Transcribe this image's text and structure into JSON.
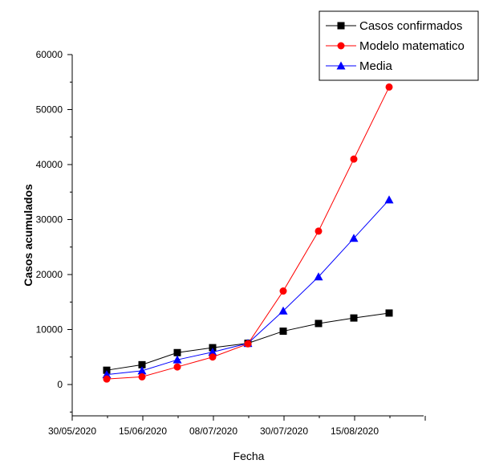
{
  "chart_data": {
    "type": "line",
    "xlabel": "Fecha",
    "ylabel": "Casos acumulados",
    "x_tick_labels": [
      "30/05/2020",
      "15/06/2020",
      "08/07/2020",
      "30/07/2020",
      "15/08/2020"
    ],
    "y_tick_labels": [
      "0",
      "10000",
      "20000",
      "30000",
      "40000",
      "50000",
      "60000"
    ],
    "ylim": [
      -5000,
      60000
    ],
    "grid": false,
    "legend_position": "top-right",
    "series": [
      {
        "name": "Casos confirmados",
        "color": "#000000",
        "marker": "square",
        "values": [
          2600,
          3600,
          5800,
          6700,
          7500,
          9700,
          11100,
          12100,
          13000
        ]
      },
      {
        "name": "Modelo matematico",
        "color": "#ff0000",
        "marker": "circle",
        "values": [
          1000,
          1400,
          3200,
          5000,
          7400,
          17000,
          27900,
          41000,
          54100
        ]
      },
      {
        "name": "Media",
        "color": "#0000ff",
        "marker": "triangle",
        "values": [
          1800,
          2500,
          4500,
          5900,
          7500,
          13400,
          19600,
          26600,
          33600
        ]
      }
    ]
  }
}
